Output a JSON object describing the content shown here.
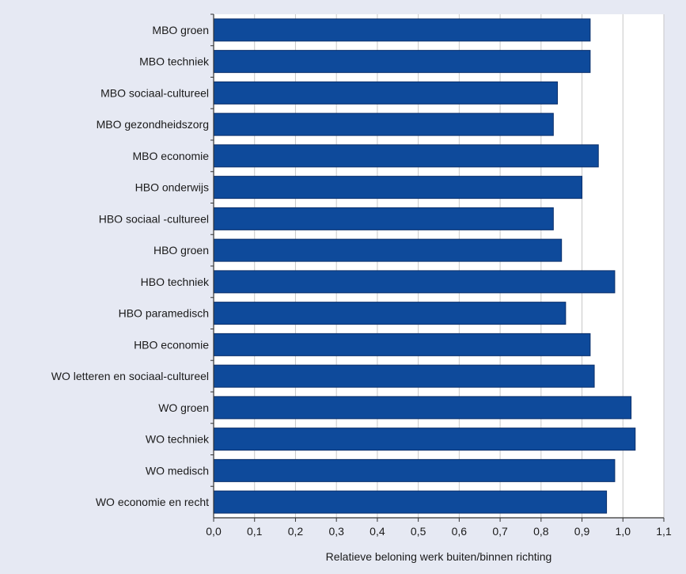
{
  "chart_data": {
    "type": "bar",
    "orientation": "horizontal",
    "categories": [
      "MBO groen",
      "MBO techniek",
      "MBO sociaal-cultureel",
      "MBO gezondheidszorg",
      "MBO economie",
      "HBO onderwijs",
      "HBO sociaal -cultureel",
      "HBO groen",
      "HBO techniek",
      "HBO paramedisch",
      "HBO economie",
      "WO letteren en sociaal-cultureel",
      "WO groen",
      "WO techniek",
      "WO medisch",
      "WO economie en recht"
    ],
    "values": [
      0.92,
      0.92,
      0.84,
      0.83,
      0.94,
      0.9,
      0.83,
      0.85,
      0.98,
      0.86,
      0.92,
      0.93,
      1.02,
      1.03,
      0.98,
      0.96
    ],
    "xlim": [
      0.0,
      1.1
    ],
    "xticks": [
      "0,0",
      "0,1",
      "0,2",
      "0,3",
      "0,4",
      "0,5",
      "0,6",
      "0,7",
      "0,8",
      "0,9",
      "1,0",
      "1,1"
    ],
    "xlabel": "Relatieve beloning werk buiten/binnen richting",
    "ylabel": "",
    "title": "",
    "grid": "vertical",
    "colors": {
      "bar_fill": "#0e4a9b",
      "bar_stroke": "#0a2f6b",
      "plot_bg": "#ffffff",
      "frame_bg": "#e6e9f3",
      "grid": "#c8c8c8",
      "axis": "#333333"
    }
  }
}
